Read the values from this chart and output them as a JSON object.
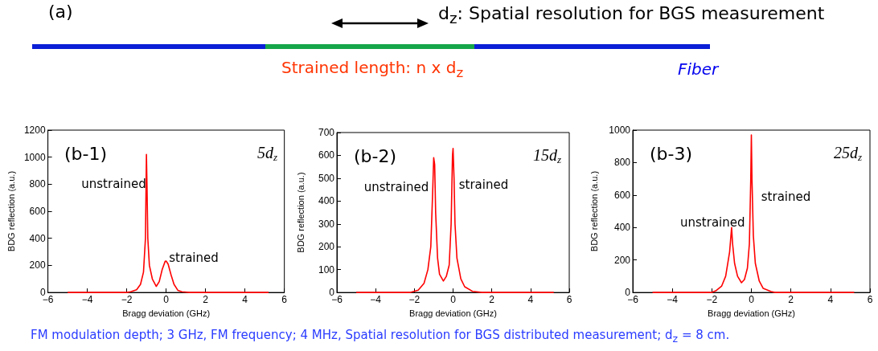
{
  "chart_data": [
    {
      "type": "other",
      "annotations": [
        "(a)",
        "d$_{z}$: Spatial resolution for BGS measurement",
        "Strained length: n x d$_{z}$",
        "Fiber",
        "FM modulation depth; 3 GHz, FM frequency; 4 MHz, Spatial resolution for BGS distributed measurement; d$_{z}$ = 8 cm."
      ]
    },
    {
      "type": "line",
      "xlabel": "Bragg deviation (GHz)",
      "ylabel": "BDG reflection (a.u.)",
      "xlim": [
        -6,
        6
      ],
      "xticks": [
        -6,
        -4,
        -2,
        0,
        2,
        4,
        6
      ],
      "ylim": [
        0,
        1200
      ],
      "yticks": [
        0,
        200,
        400,
        600,
        800,
        1000,
        1200
      ],
      "grid": false,
      "marker": "none",
      "line_style": "solid",
      "annotations": [
        "(b-1)",
        "5d$_{z}$",
        "unstrained",
        "strained"
      ],
      "series": [
        {
          "color": "#ff0000",
          "x": [
            -5,
            -2,
            -1.8,
            -1.5,
            -1.3,
            -1.15,
            -1.05,
            -1,
            -0.97,
            -0.93,
            -0.85,
            -0.7,
            -0.5,
            -0.35,
            -0.2,
            -0.05,
            0,
            0.1,
            0.25,
            0.4,
            0.6,
            0.8,
            1.2,
            5.2
          ],
          "values": [
            0,
            0,
            5,
            20,
            60,
            150,
            400,
            1020,
            780,
            400,
            200,
            100,
            45,
            80,
            170,
            230,
            232,
            210,
            130,
            60,
            15,
            5,
            0,
            0
          ]
        }
      ]
    },
    {
      "type": "line",
      "xlabel": "Bragg deviation (GHz)",
      "ylabel": "BDG reflection (a.u.)",
      "xlim": [
        -6,
        6
      ],
      "xticks": [
        -6,
        -4,
        -2,
        0,
        2,
        4,
        6
      ],
      "ylim": [
        0,
        700
      ],
      "yticks": [
        0,
        100,
        200,
        300,
        400,
        500,
        600,
        700
      ],
      "grid": false,
      "marker": "none",
      "line_style": "solid",
      "annotations": [
        "(b-2)",
        "15d$_{z}$",
        "unstrained",
        "strained"
      ],
      "series": [
        {
          "color": "#ff0000",
          "x": [
            -5,
            -2.2,
            -1.8,
            -1.5,
            -1.3,
            -1.15,
            -1.05,
            -1,
            -0.95,
            -0.9,
            -0.8,
            -0.7,
            -0.5,
            -0.35,
            -0.2,
            -0.1,
            -0.03,
            0,
            0.05,
            0.1,
            0.2,
            0.4,
            0.6,
            1,
            1.5,
            5.2
          ],
          "values": [
            0,
            0,
            10,
            40,
            100,
            200,
            450,
            590,
            560,
            350,
            150,
            80,
            50,
            70,
            120,
            300,
            600,
            630,
            500,
            300,
            150,
            60,
            25,
            5,
            0,
            0
          ]
        }
      ]
    },
    {
      "type": "line",
      "xlabel": "Bragg deviation (GHz)",
      "ylabel": "BDG reflection (a.u.)",
      "xlim": [
        -6,
        6
      ],
      "xticks": [
        -6,
        -4,
        -2,
        0,
        2,
        4,
        6
      ],
      "ylim": [
        0,
        1000
      ],
      "yticks": [
        0,
        200,
        400,
        600,
        800,
        1000
      ],
      "grid": false,
      "marker": "none",
      "line_style": "solid",
      "annotations": [
        "(b-3)",
        "25d$_{z}$",
        "unstrained",
        "strained"
      ],
      "series": [
        {
          "color": "#ff0000",
          "x": [
            -5,
            -2,
            -1.8,
            -1.5,
            -1.3,
            -1.1,
            -1,
            -0.95,
            -0.85,
            -0.7,
            -0.5,
            -0.35,
            -0.2,
            -0.1,
            -0.03,
            0,
            0.03,
            0.1,
            0.2,
            0.4,
            0.6,
            1,
            1.2,
            5.2
          ],
          "values": [
            0,
            0,
            10,
            40,
            100,
            250,
            400,
            300,
            180,
            100,
            60,
            80,
            150,
            300,
            700,
            970,
            700,
            350,
            180,
            70,
            25,
            5,
            0,
            0
          ]
        }
      ]
    }
  ]
}
